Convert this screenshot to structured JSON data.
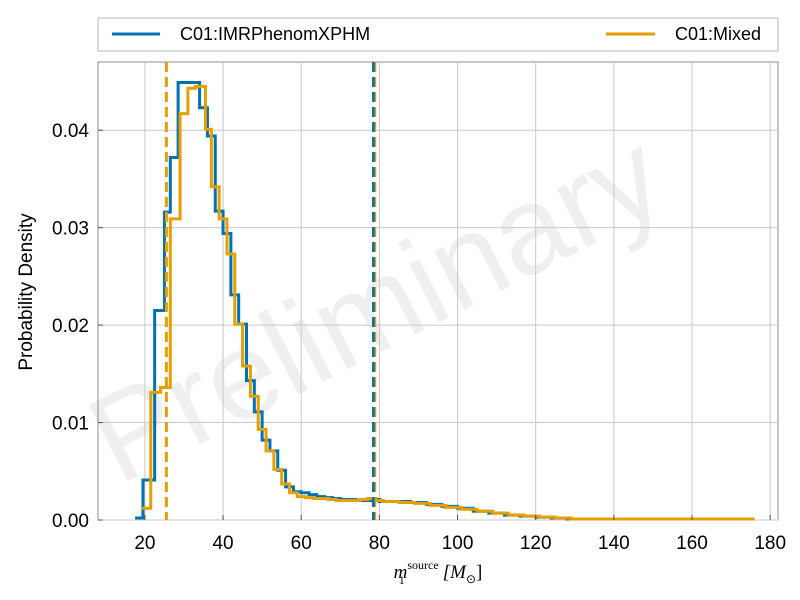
{
  "chart_data": {
    "type": "histogram",
    "watermark": "Preliminary",
    "xlabel": {
      "base": "m",
      "sub": "1",
      "sup": "source",
      "unit": "[M",
      "unit_sub": "⊙",
      "unit_close": "]"
    },
    "ylabel": "Probability Density",
    "xlim": [
      8,
      182
    ],
    "ylim": [
      0,
      0.047
    ],
    "x_ticks": [
      20,
      40,
      60,
      80,
      100,
      120,
      140,
      160,
      180
    ],
    "y_ticks": [
      0.0,
      0.01,
      0.02,
      0.03,
      0.04
    ],
    "y_tick_labels": [
      "0.00",
      "0.01",
      "0.02",
      "0.03",
      "0.04"
    ],
    "grid": true,
    "legend_placement": "top, above plot",
    "series": [
      {
        "name": "C01:IMRPhenomXPHM",
        "color": "#0072b2",
        "edges": [
          17.5,
          19.5,
          22.5,
          25.0,
          26.5,
          28.5,
          30.5,
          34.0,
          36.0,
          38.0,
          40.0,
          42.0,
          44.0,
          46.0,
          48.0,
          50.0,
          52.0,
          54.0,
          56.0,
          58.0,
          60.0,
          62.0,
          64.0,
          66.0,
          68.0,
          70.0,
          72.0,
          74.0,
          76.0,
          78.0,
          80.0,
          84.0,
          88.0,
          92.0,
          96.0,
          100.0,
          104.0,
          108.0,
          112.0,
          116.0,
          120.0,
          124.0,
          128.0,
          132.0,
          176.0
        ],
        "values": [
          0.0002,
          0.0041,
          0.0215,
          0.0316,
          0.0372,
          0.0449,
          0.0449,
          0.0423,
          0.0394,
          0.0317,
          0.0294,
          0.0231,
          0.0201,
          0.0143,
          0.0111,
          0.0082,
          0.0071,
          0.0051,
          0.0034,
          0.0029,
          0.0028,
          0.0026,
          0.0024,
          0.0023,
          0.0022,
          0.0021,
          0.0021,
          0.002,
          0.002,
          0.0021,
          0.0019,
          0.0019,
          0.0018,
          0.0016,
          0.0014,
          0.0012,
          0.0009,
          0.0007,
          0.0005,
          0.0004,
          0.0003,
          0.0002,
          0.0001,
          0.0001
        ],
        "median_line_x": 78.5
      },
      {
        "name": "C01:Mixed",
        "color": "#e69f00",
        "edges": [
          19.0,
          21.5,
          24.0,
          26.5,
          29.0,
          31.0,
          33.0,
          35.5,
          37.0,
          39.0,
          41.0,
          43.0,
          45.0,
          47.0,
          49.0,
          51.0,
          53.0,
          55.0,
          57.0,
          59.0,
          61.0,
          63.0,
          65.0,
          67.0,
          69.0,
          71.0,
          73.0,
          75.0,
          77.0,
          79.0,
          81.0,
          85.0,
          89.0,
          93.0,
          97.0,
          101.0,
          105.0,
          109.0,
          113.0,
          117.0,
          121.0,
          125.0,
          129.0,
          133.0,
          176.0
        ],
        "values": [
          0.0012,
          0.0131,
          0.0136,
          0.0309,
          0.0417,
          0.0443,
          0.0445,
          0.0401,
          0.0342,
          0.0309,
          0.0273,
          0.0201,
          0.0158,
          0.0127,
          0.0093,
          0.0071,
          0.0052,
          0.0037,
          0.0028,
          0.0024,
          0.0023,
          0.0022,
          0.0022,
          0.0021,
          0.002,
          0.002,
          0.002,
          0.0021,
          0.0022,
          0.002,
          0.0019,
          0.0018,
          0.0017,
          0.0015,
          0.0013,
          0.0011,
          0.0009,
          0.0007,
          0.0005,
          0.0004,
          0.0003,
          0.0002,
          0.0001,
          0.0001
        ],
        "median_line_x": 79.0,
        "lower_line_x": 25.5
      }
    ],
    "vertical_lines": [
      {
        "x": 25.5,
        "color": "#e69f00",
        "style": "dashed",
        "width": 3
      },
      {
        "x": 78.5,
        "color": "#0072b2",
        "style": "dashed",
        "width": 3
      },
      {
        "x": 79.0,
        "color": "#e69f00",
        "style": "dashed",
        "width": 1.5
      }
    ]
  }
}
